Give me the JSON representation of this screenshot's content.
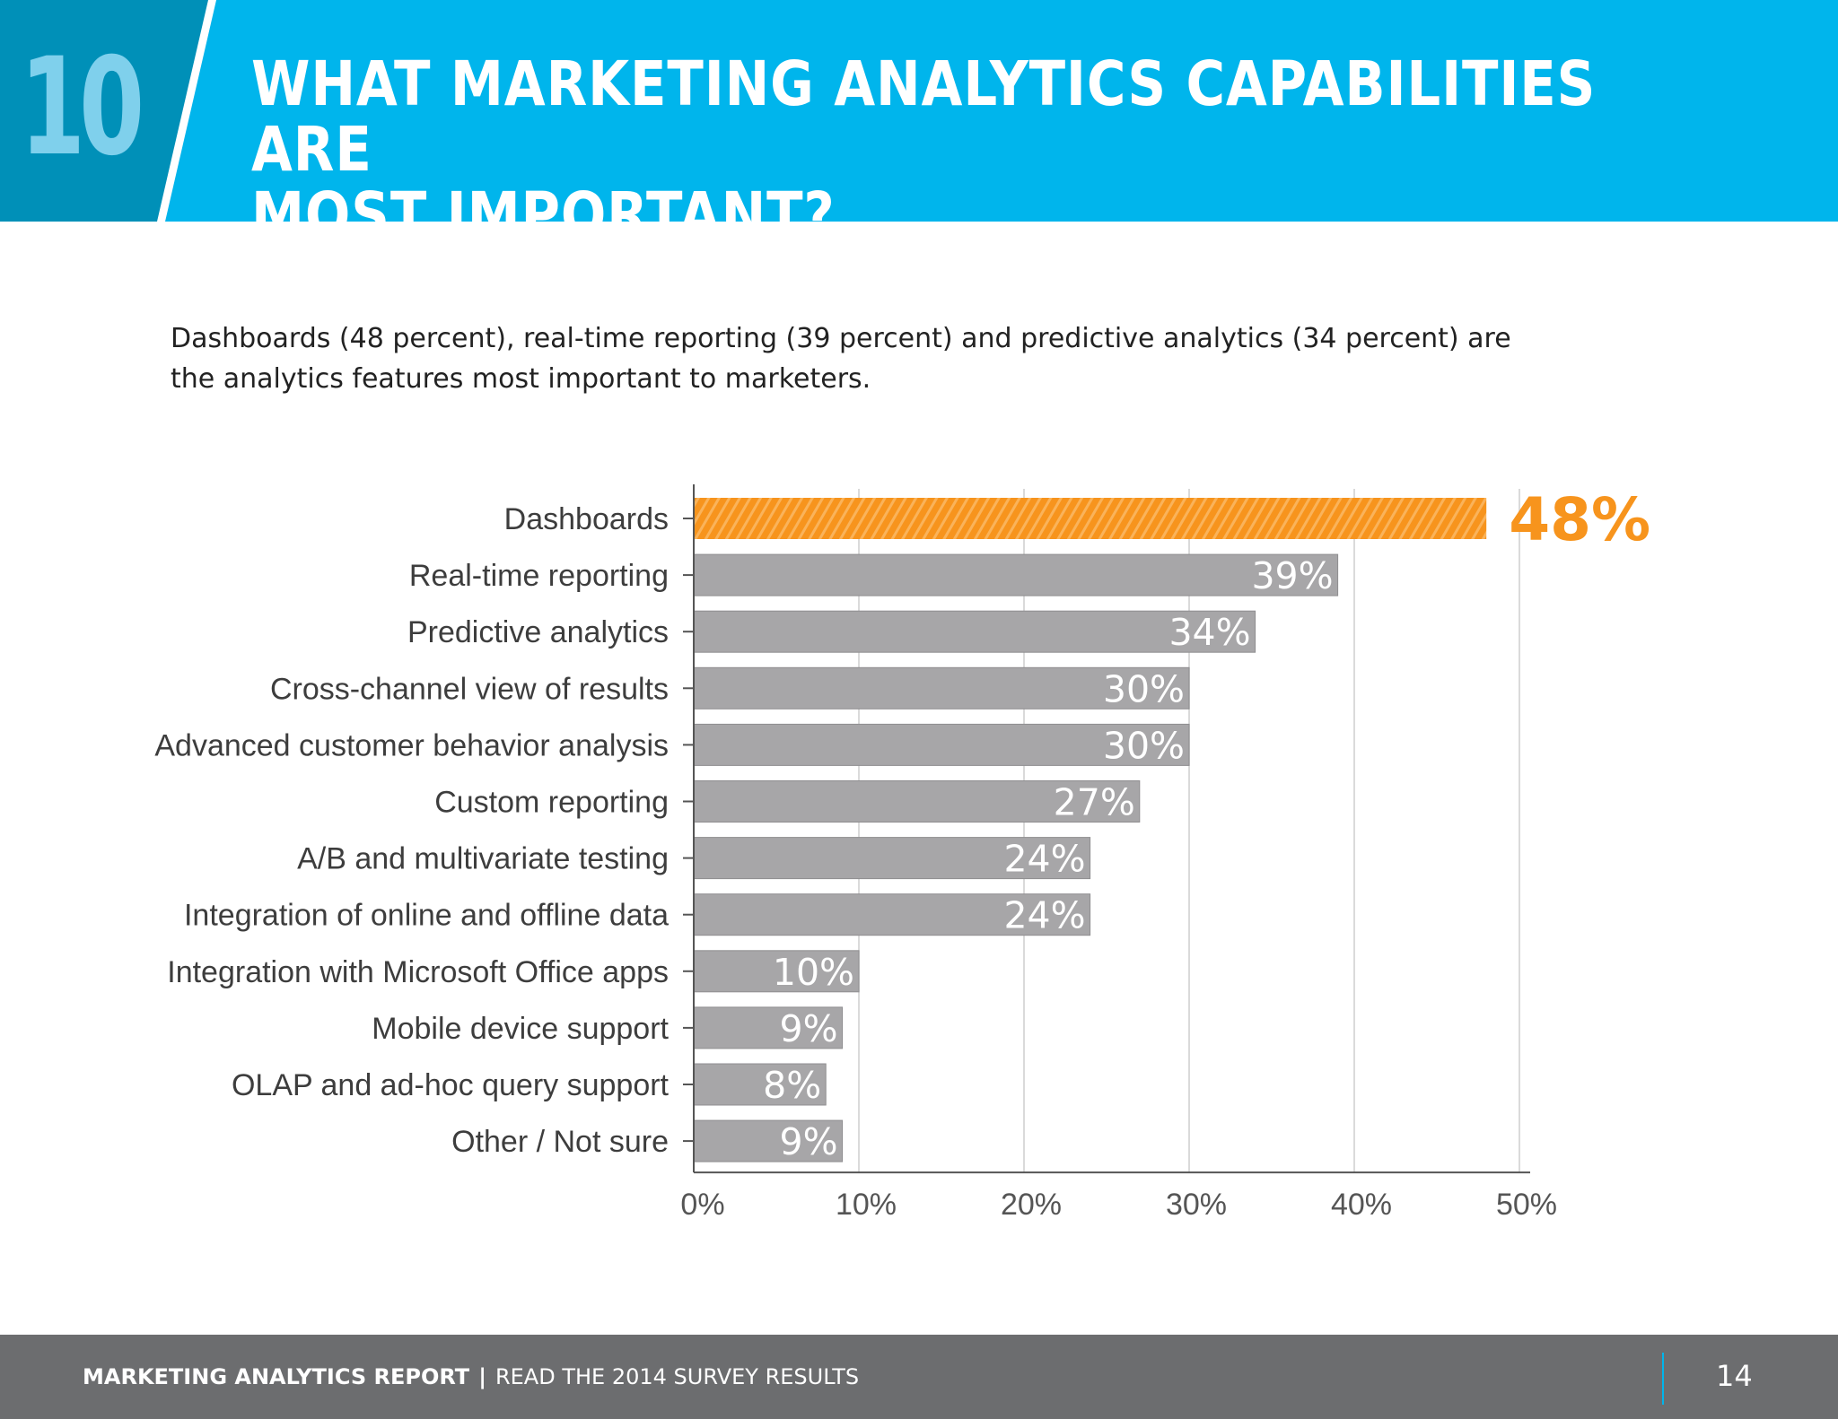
{
  "header": {
    "number": "10",
    "title_line1": "WHAT MARKETING ANALYTICS CAPABILITIES ARE",
    "title_line2": "MOST IMPORTANT?"
  },
  "intro": {
    "line1": "Dashboards (48 percent), real-time reporting (39 percent) and predictive analytics (34 percent) are",
    "line2": "the analytics features most important to marketers."
  },
  "colors": {
    "header_bg": "#00b5ec",
    "number_panel": "#0090b8",
    "highlight_bar": "#f7941d",
    "bar": "#a7a6a8",
    "footer_bg": "#6c6d6f"
  },
  "chart_data": {
    "type": "bar",
    "orientation": "horizontal",
    "categories": [
      "Dashboards",
      "Real-time reporting",
      "Predictive analytics",
      "Cross-channel view of results",
      "Advanced customer behavior analysis",
      "Custom reporting",
      "A/B and multivariate testing",
      "Integration of online and offline data",
      "Integration with Microsoft Office apps",
      "Mobile device support",
      "OLAP and ad-hoc query support",
      "Other / Not sure"
    ],
    "values": [
      48,
      39,
      34,
      30,
      30,
      27,
      24,
      24,
      10,
      9,
      8,
      9
    ],
    "data_labels": [
      "48%",
      "39%",
      "34%",
      "30%",
      "30%",
      "27%",
      "24%",
      "24%",
      "10%",
      "9%",
      "8%",
      "9%"
    ],
    "highlight_index": 0,
    "xlim": [
      0,
      50
    ],
    "xticks": [
      0,
      10,
      20,
      30,
      40,
      50
    ],
    "xtick_labels": [
      "0%",
      "10%",
      "20%",
      "30%",
      "40%",
      "50%"
    ],
    "grid": true
  },
  "footer": {
    "report": "MARKETING ANALYTICS REPORT",
    "separator": "|",
    "link": "READ THE 2014 SURVEY RESULTS",
    "page": "14"
  }
}
